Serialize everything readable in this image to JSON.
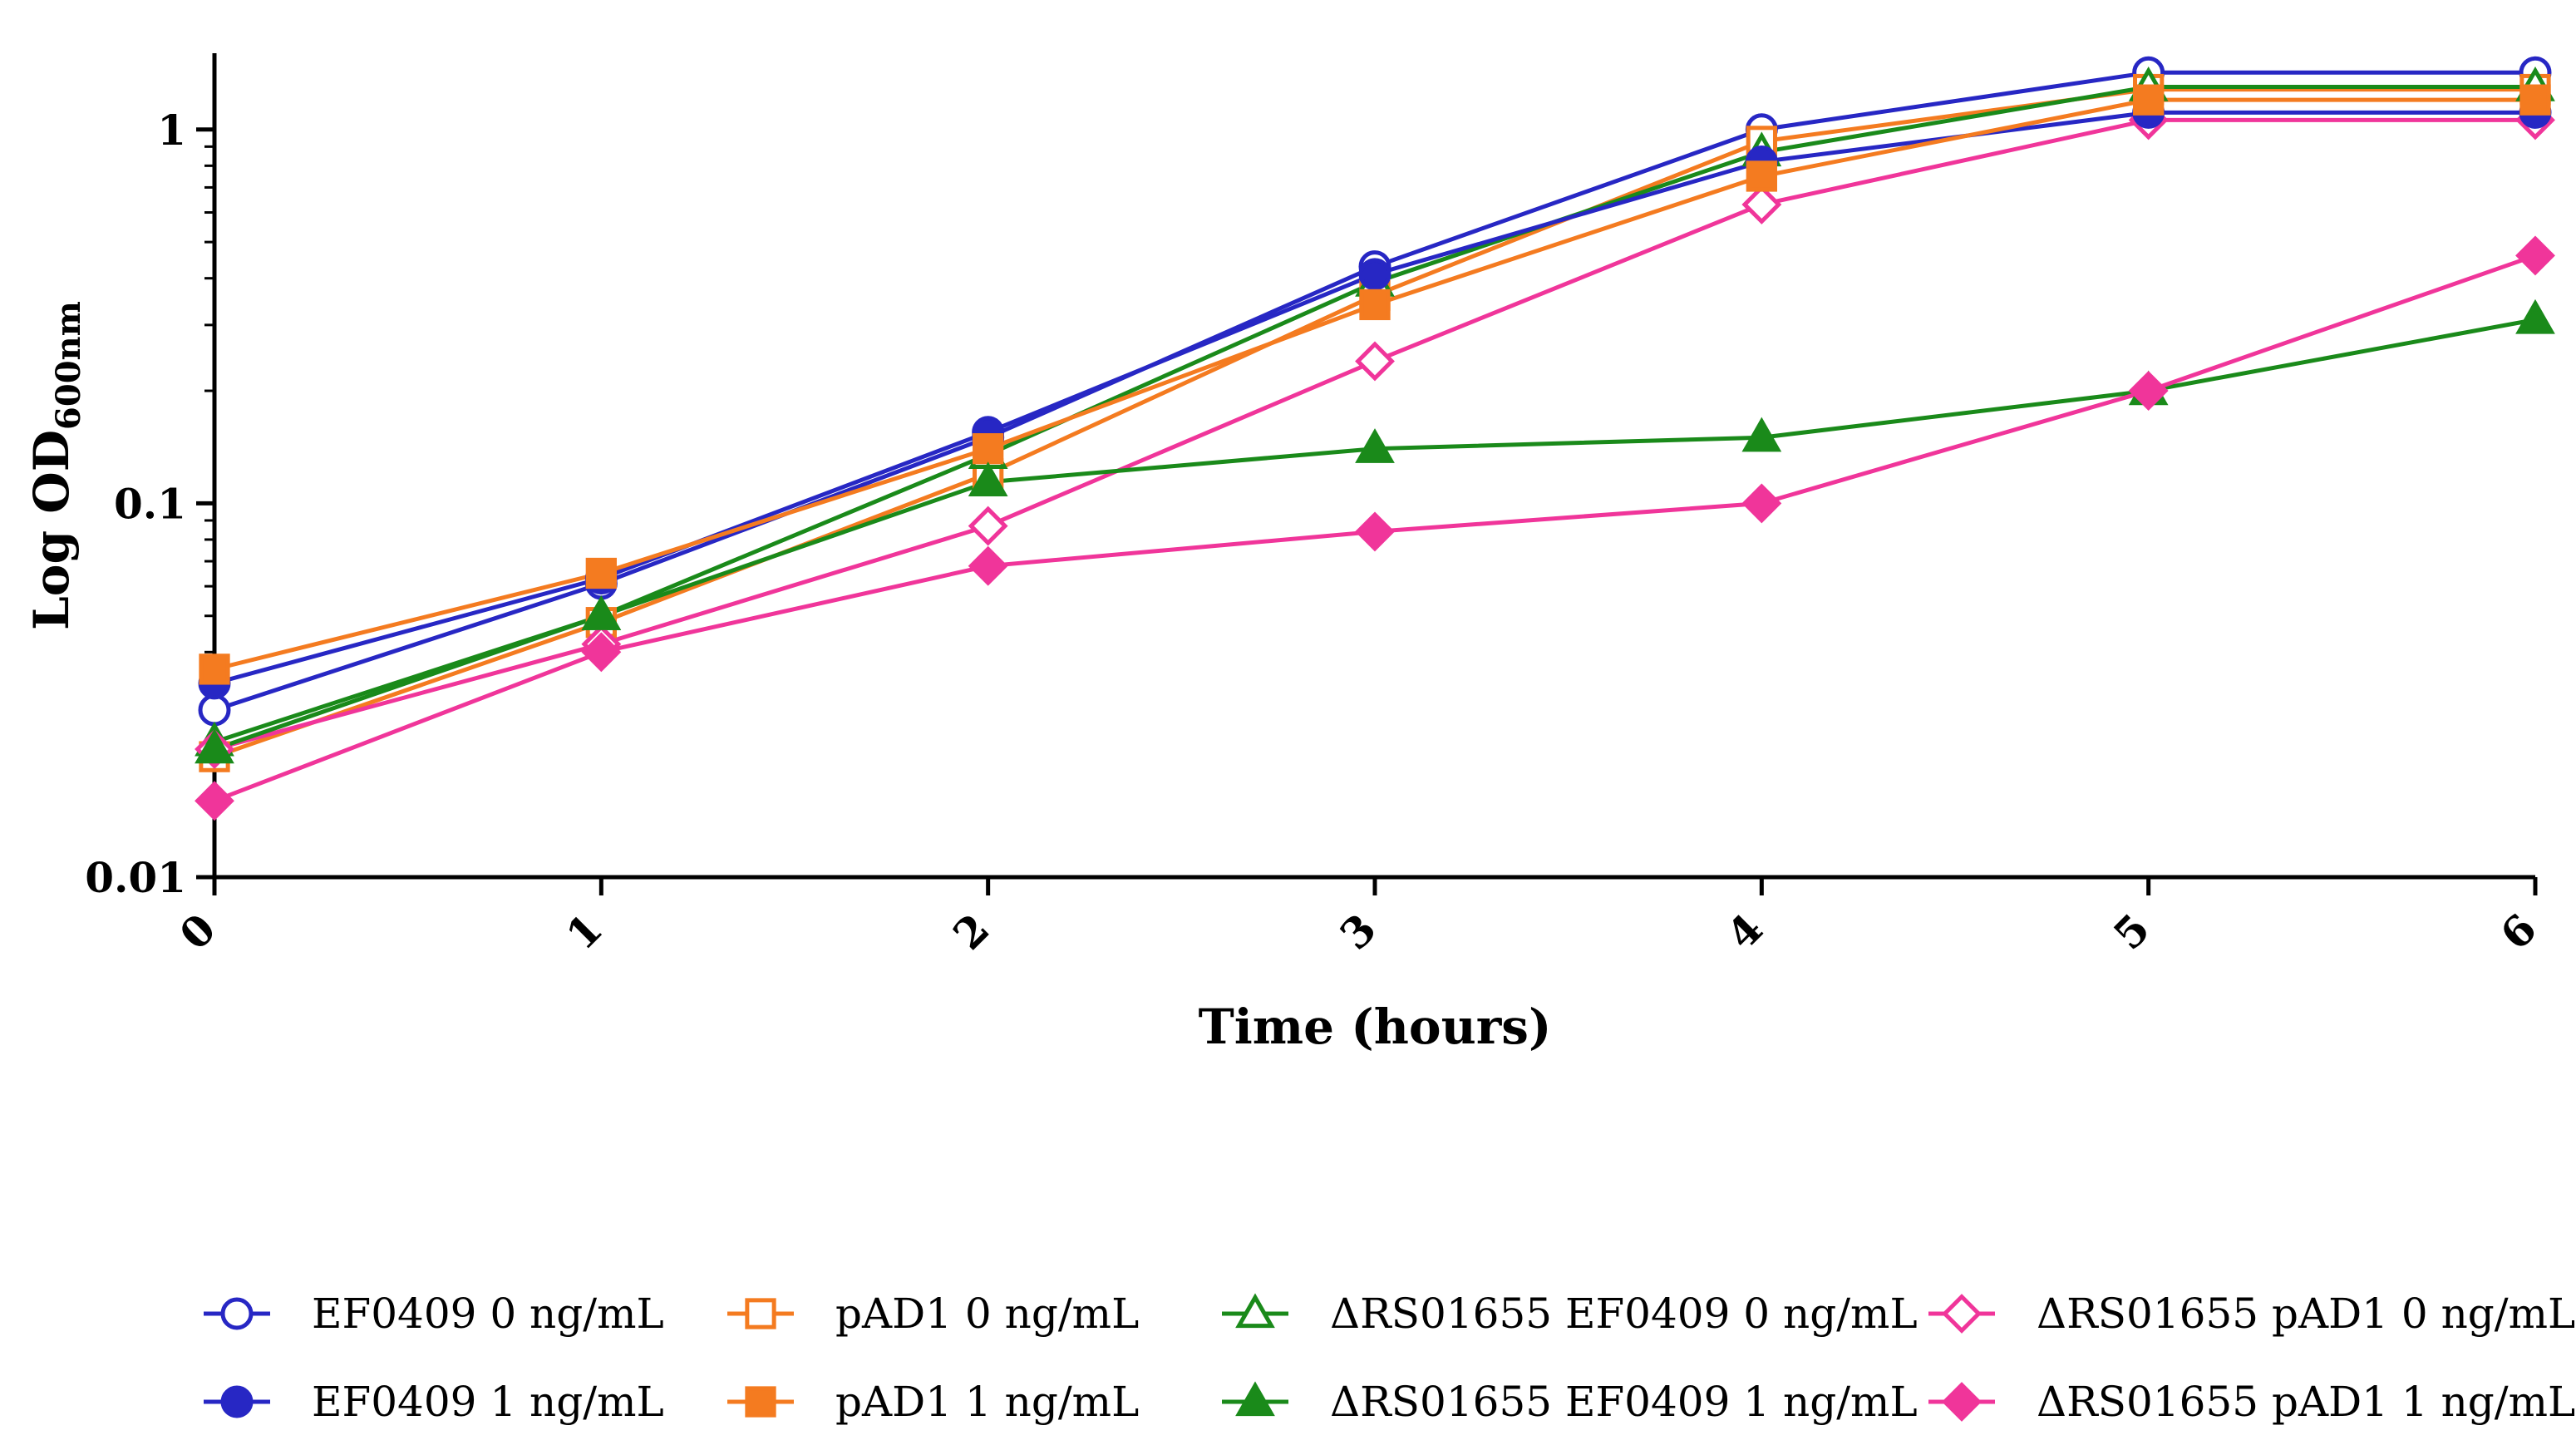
{
  "chart_data": {
    "type": "line",
    "title": "",
    "xlabel": "Time (hours)",
    "ylabel_main": "Log OD",
    "ylabel_sub": "600nm",
    "yscale": "log",
    "ylim": [
      0.01,
      1.6
    ],
    "xlim": [
      0,
      6
    ],
    "x": [
      0,
      1,
      2,
      3,
      4,
      5,
      6
    ],
    "x_tick_labels": [
      "0",
      "1",
      "2",
      "3",
      "4",
      "5",
      "6"
    ],
    "y_ticks": [
      0.01,
      0.1,
      1
    ],
    "y_tick_labels": [
      "0.01",
      "0.1",
      "1"
    ],
    "legend_position": "bottom",
    "series": [
      {
        "name": "EF0409 0 ng/mL",
        "color": "#2727c4",
        "marker": "circle",
        "filled": false,
        "values": [
          0.028,
          0.061,
          0.15,
          0.43,
          1.0,
          1.42,
          1.42
        ]
      },
      {
        "name": "pAD1 0 ng/mL",
        "color": "#f47b20",
        "marker": "square",
        "filled": false,
        "values": [
          0.021,
          0.048,
          0.12,
          0.36,
          0.93,
          1.28,
          1.28
        ]
      },
      {
        "name": "ΔRS01655 EF0409 0 ng/mL",
        "color": "#1a8a1a",
        "marker": "triangle",
        "filled": false,
        "values": [
          0.023,
          0.05,
          0.135,
          0.39,
          0.87,
          1.3,
          1.3
        ]
      },
      {
        "name": "ΔRS01655 pAD1 0 ng/mL",
        "color": "#f0359a",
        "marker": "diamond",
        "filled": false,
        "values": [
          0.022,
          0.042,
          0.087,
          0.24,
          0.63,
          1.06,
          1.06
        ]
      },
      {
        "name": "EF0409 1 ng/mL",
        "color": "#2727c4",
        "marker": "circle",
        "filled": true,
        "values": [
          0.033,
          0.063,
          0.155,
          0.41,
          0.82,
          1.11,
          1.11
        ]
      },
      {
        "name": "pAD1 1 ng/mL",
        "color": "#f47b20",
        "marker": "square",
        "filled": true,
        "values": [
          0.036,
          0.065,
          0.14,
          0.34,
          0.75,
          1.2,
          1.2
        ]
      },
      {
        "name": "ΔRS01655 EF0409 1 ng/mL",
        "color": "#1a8a1a",
        "marker": "triangle",
        "filled": true,
        "values": [
          0.022,
          0.05,
          0.114,
          0.14,
          0.15,
          0.2,
          0.31
        ]
      },
      {
        "name": "ΔRS01655 pAD1 1 ng/mL",
        "color": "#f0359a",
        "marker": "diamond",
        "filled": true,
        "values": [
          0.016,
          0.04,
          0.068,
          0.084,
          0.1,
          0.2,
          0.46
        ]
      }
    ]
  }
}
